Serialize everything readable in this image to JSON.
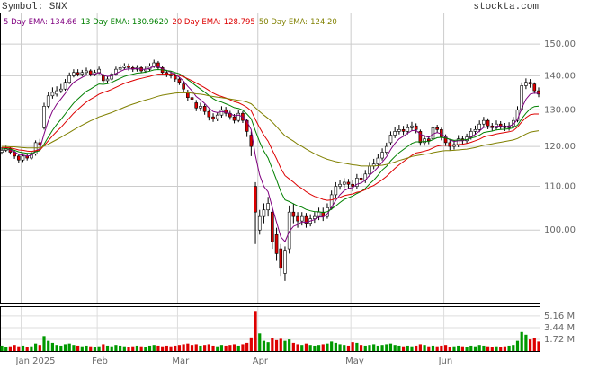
{
  "chart_data": {
    "type": "candlestick",
    "title": "Symbol: SNX",
    "source": "stockta.com",
    "log_scale": true,
    "grid": true,
    "up_color": "#ffffff",
    "down_color": "#dd0000",
    "ylim": [
      85.2,
      160.7
    ],
    "yticks": [
      {
        "value": 100,
        "label": "100.00"
      },
      {
        "value": 110,
        "label": "110.00"
      },
      {
        "value": 120,
        "label": "120.00"
      },
      {
        "value": 130,
        "label": "130.00"
      },
      {
        "value": 140,
        "label": "140.00"
      },
      {
        "value": 150,
        "label": "150.00"
      }
    ],
    "categories": [
      null,
      null,
      null,
      null,
      null,
      "Jan 2025",
      null,
      null,
      null,
      null,
      null,
      null,
      null,
      null,
      null,
      null,
      null,
      null,
      null,
      null,
      null,
      null,
      null,
      "Feb",
      null,
      null,
      null,
      null,
      null,
      null,
      null,
      null,
      null,
      null,
      null,
      null,
      null,
      null,
      null,
      null,
      null,
      null,
      "Mar",
      null,
      null,
      null,
      null,
      null,
      null,
      null,
      null,
      null,
      null,
      null,
      null,
      null,
      null,
      null,
      null,
      null,
      null,
      "Apr",
      null,
      null,
      null,
      null,
      null,
      null,
      null,
      null,
      null,
      null,
      null,
      null,
      null,
      null,
      null,
      null,
      null,
      null,
      null,
      null,
      null,
      "May",
      null,
      null,
      null,
      null,
      null,
      null,
      null,
      null,
      null,
      null,
      null,
      null,
      null,
      null,
      null,
      null,
      null,
      null,
      null,
      null,
      null,
      "Jun",
      null,
      null,
      null,
      null,
      null,
      null,
      null,
      null,
      null,
      null,
      null,
      null,
      null,
      null,
      null,
      null,
      null,
      null,
      null,
      null,
      null,
      null
    ],
    "open": [
      118.5,
      119,
      119.5,
      118.5,
      117.5,
      116.5,
      117.5,
      117,
      118,
      121,
      125,
      131,
      134,
      134.5,
      135.5,
      136,
      138,
      140,
      141,
      140.5,
      141,
      141.5,
      140.5,
      141,
      140,
      138.5,
      139,
      140.5,
      142,
      142.5,
      143,
      142.5,
      142,
      142.5,
      141.5,
      142,
      143,
      144,
      142.5,
      141,
      140.5,
      140,
      139,
      137.5,
      135,
      133.5,
      132,
      130.5,
      131,
      129.5,
      128,
      127.5,
      128.5,
      130,
      129,
      128,
      127,
      129,
      127,
      123,
      110,
      100,
      103,
      104.5,
      104,
      99,
      96,
      91,
      96,
      104,
      103,
      102,
      103,
      101.5,
      102.5,
      103,
      104,
      103,
      105,
      108,
      110,
      110.5,
      111,
      110.5,
      110,
      112,
      111.5,
      113,
      115,
      115.5,
      117,
      118.5,
      121,
      123,
      124,
      124.5,
      124,
      125,
      125.5,
      124,
      121,
      122,
      122,
      125,
      124.5,
      122.5,
      121,
      120,
      120.5,
      122,
      121.5,
      122.5,
      124,
      124.5,
      126,
      127,
      125.5,
      125,
      126,
      125.5,
      125,
      125.5,
      127,
      130,
      137,
      138,
      137.5,
      135.5
    ],
    "high": [
      119.8,
      120.2,
      120,
      119,
      118,
      118.2,
      118.3,
      118.6,
      121.6,
      122,
      132,
      135,
      136.5,
      136.8,
      137.5,
      139,
      141,
      142,
      142,
      141.8,
      142.5,
      142,
      141.8,
      142.8,
      140.6,
      139.8,
      141,
      142.8,
      143.5,
      143.9,
      143.8,
      143.2,
      143.3,
      143.1,
      142.8,
      143.9,
      145,
      144.6,
      143,
      141.8,
      141.3,
      140.8,
      139.6,
      138.3,
      135.8,
      134.6,
      132.8,
      132,
      131.6,
      130.2,
      129,
      129.3,
      131,
      130.8,
      129.7,
      128.8,
      129.8,
      129.6,
      127.5,
      124,
      111,
      104.5,
      106,
      107.5,
      105,
      100.5,
      97,
      96.5,
      105.5,
      106,
      104,
      104,
      103.8,
      103.5,
      104,
      105,
      105,
      106,
      109,
      111,
      111.6,
      112,
      111.8,
      111.5,
      113,
      113,
      114,
      116,
      116.8,
      118,
      119.5,
      121,
      124,
      125.2,
      125.8,
      125.5,
      126,
      126.6,
      126.2,
      124.5,
      123,
      122.8,
      126,
      125.8,
      125,
      123.2,
      121.6,
      121.6,
      123,
      122.8,
      123.4,
      124.8,
      125.6,
      127,
      128,
      127.6,
      126.3,
      127,
      126.8,
      126.3,
      126.5,
      128,
      131,
      138,
      139.2,
      139,
      138,
      136.5
    ],
    "low": [
      117.9,
      118.6,
      117.9,
      116.8,
      115.8,
      116,
      116.4,
      116.6,
      117.6,
      119.8,
      124.5,
      130.5,
      133.2,
      133.8,
      134.8,
      135.5,
      137.5,
      139.5,
      139.8,
      139.8,
      140.3,
      139.8,
      139.9,
      140.5,
      137.8,
      137.9,
      138.6,
      140,
      141.4,
      141.8,
      141.6,
      141.2,
      141.3,
      140.8,
      140.9,
      141.5,
      142.4,
      141.8,
      140.3,
      139.6,
      139.2,
      138.2,
      137.2,
      135.2,
      132.6,
      131.8,
      129.6,
      129.6,
      128.6,
      127,
      126.6,
      126.8,
      127.8,
      128.2,
      127.2,
      126.2,
      126.5,
      126.3,
      122.5,
      117.5,
      97,
      99,
      101.5,
      103,
      96,
      93.5,
      90.5,
      89.5,
      95,
      101.5,
      100.5,
      101,
      100.5,
      100.8,
      101.6,
      102.2,
      102,
      102.5,
      104.5,
      107.2,
      109.2,
      109.6,
      109.4,
      108.8,
      109.4,
      110.5,
      110.8,
      112.4,
      114.2,
      114.8,
      116.4,
      117.8,
      120.5,
      122.2,
      123.2,
      123,
      123.2,
      124.2,
      123.5,
      120.2,
      120.2,
      120.6,
      121.5,
      123.6,
      121.6,
      120.1,
      119,
      119.2,
      119.8,
      120.6,
      120.8,
      121.8,
      123.2,
      123.8,
      125.2,
      124.6,
      124.2,
      124.3,
      124.6,
      124.1,
      124.2,
      124.8,
      126.5,
      129.5,
      136,
      136.4,
      134.6,
      133.6
    ],
    "close": [
      119,
      119.5,
      118.5,
      117.5,
      116.5,
      117.5,
      117,
      118,
      121,
      120.5,
      131,
      134,
      135,
      135.5,
      136,
      138,
      140,
      141,
      140.5,
      141,
      141.5,
      140.5,
      141,
      142,
      138.5,
      139,
      140.5,
      142,
      142.5,
      143,
      142.5,
      142,
      142.5,
      141.5,
      142,
      143,
      144,
      142.5,
      141,
      140.5,
      140,
      139,
      138,
      136,
      133.5,
      133,
      130.5,
      131,
      129.5,
      128,
      127.5,
      128.5,
      130,
      129,
      128,
      127,
      129,
      127,
      124,
      120,
      104,
      103,
      104.5,
      106,
      97.5,
      95,
      92,
      95.5,
      104,
      103,
      102,
      103,
      101.5,
      102.5,
      103,
      104,
      103,
      105,
      108,
      110,
      110.5,
      111,
      110.5,
      110,
      112,
      111.5,
      113,
      115,
      115.5,
      117,
      118.5,
      120,
      123,
      124,
      124.5,
      124,
      125,
      125.5,
      124.5,
      121,
      122,
      121.5,
      125,
      124.5,
      122.5,
      121,
      120,
      120.5,
      122,
      121.5,
      122.5,
      124,
      124.5,
      126,
      127,
      125.5,
      125,
      126,
      125.5,
      125,
      125.5,
      127,
      130,
      137,
      138,
      137.5,
      135.5,
      134.5
    ],
    "series": [
      {
        "name": "5 Day EMA:",
        "value_label": "134.66",
        "color": "#800080",
        "values": [
          119.3,
          119.4,
          119.1,
          118.6,
          117.9,
          117.8,
          117.5,
          117.7,
          118.8,
          119.4,
          123.3,
          126.9,
          129.6,
          131.6,
          133.1,
          134.7,
          136.5,
          138.0,
          138.8,
          139.5,
          140.2,
          140.3,
          140.5,
          141.0,
          140.2,
          139.8,
          140.0,
          140.7,
          141.3,
          141.9,
          142.1,
          142.1,
          142.2,
          142.0,
          142.0,
          142.3,
          142.9,
          142.8,
          142.2,
          141.6,
          141.1,
          140.4,
          139.6,
          138.4,
          136.8,
          135.5,
          133.8,
          132.9,
          131.8,
          130.5,
          129.5,
          129.2,
          129.5,
          129.3,
          128.9,
          128.3,
          128.5,
          128.0,
          126.7,
          124.5,
          117.7,
          112.8,
          110.0,
          108.7,
          105.0,
          101.7,
          98.5,
          97.5,
          99.7,
          100.8,
          101.2,
          101.8,
          101.7,
          102.0,
          102.3,
          102.9,
          102.9,
          103.6,
          105.1,
          106.7,
          108.0,
          109.0,
          109.5,
          109.7,
          110.5,
          110.8,
          111.5,
          112.7,
          113.6,
          114.7,
          116.0,
          117.3,
          119.2,
          120.8,
          122.0,
          122.7,
          123.5,
          124.2,
          124.3,
          123.2,
          122.8,
          122.4,
          123.3,
          123.7,
          123.3,
          122.5,
          121.7,
          121.3,
          121.5,
          121.5,
          121.8,
          122.5,
          123.2,
          124.1,
          125.1,
          125.2,
          125.1,
          125.4,
          125.4,
          125.3,
          125.4,
          125.9,
          127.3,
          130.5,
          133.0,
          134.5,
          134.8,
          134.7
        ]
      },
      {
        "name": "13 Day EMA:",
        "value_label": "130.9620",
        "color": "#008000",
        "values": [
          119.4,
          119.4,
          119.3,
          119.0,
          118.6,
          118.4,
          118.2,
          118.2,
          118.6,
          118.9,
          120.6,
          122.5,
          124.3,
          125.9,
          127.3,
          128.8,
          130.4,
          131.9,
          133.1,
          134.2,
          135.3,
          136.0,
          136.8,
          137.5,
          137.4,
          137.6,
          138.0,
          138.6,
          139.2,
          139.8,
          140.2,
          140.5,
          140.8,
          140.9,
          141.1,
          141.4,
          141.8,
          141.9,
          141.8,
          141.6,
          141.4,
          141.0,
          140.6,
          139.9,
          138.8,
          137.9,
          136.9,
          136.0,
          135.1,
          134.1,
          133.2,
          132.5,
          132.2,
          131.7,
          131.2,
          130.6,
          130.4,
          129.9,
          128.8,
          127.5,
          124.2,
          121.2,
          118.8,
          117.0,
          114.2,
          111.5,
          108.7,
          106.8,
          106.4,
          105.9,
          105.4,
          105.1,
          104.6,
          104.3,
          104.1,
          104.1,
          103.9,
          104.1,
          104.7,
          105.4,
          106.2,
          106.9,
          107.3,
          107.7,
          108.3,
          108.8,
          109.5,
          110.6,
          111.5,
          112.7,
          114.0,
          114.9,
          116.3,
          117.4,
          118.4,
          119.2,
          120.0,
          120.8,
          121.2,
          121.2,
          121.3,
          121.3,
          121.8,
          122.3,
          122.4,
          122.2,
          121.9,
          121.6,
          121.7,
          121.7,
          121.8,
          122.2,
          122.5,
          123.0,
          123.7,
          123.9,
          124.1,
          124.4,
          124.5,
          124.6,
          124.7,
          125.0,
          125.7,
          127.5,
          129.0,
          130.3,
          130.9,
          131.0
        ]
      },
      {
        "name": "20 Day EMA:",
        "value_label": "128.795",
        "color": "#dd0000",
        "values": [
          119.7,
          119.7,
          119.6,
          119.4,
          119.1,
          119.0,
          118.8,
          118.7,
          118.9,
          119.1,
          120.2,
          121.5,
          122.8,
          124.0,
          125.1,
          126.4,
          127.7,
          129.0,
          130.1,
          131.2,
          132.2,
          133.0,
          133.7,
          134.5,
          135.0,
          135.4,
          135.9,
          136.5,
          137.1,
          137.7,
          138.1,
          138.5,
          138.9,
          139.2,
          139.5,
          139.8,
          140.2,
          140.5,
          140.5,
          140.5,
          140.5,
          140.3,
          140.1,
          139.7,
          139.1,
          138.5,
          137.8,
          137.1,
          136.4,
          135.6,
          134.8,
          134.2,
          133.8,
          133.4,
          132.9,
          132.3,
          132.0,
          131.4,
          130.7,
          129.7,
          127.3,
          125.0,
          123.0,
          121.4,
          119.0,
          116.8,
          114.4,
          112.6,
          111.8,
          111.0,
          110.1,
          109.5,
          108.7,
          108.1,
          107.6,
          107.3,
          106.9,
          106.7,
          106.8,
          107.1,
          107.4,
          107.8,
          108.0,
          108.2,
          108.6,
          108.8,
          109.2,
          109.8,
          110.2,
          110.9,
          111.6,
          112.4,
          113.4,
          114.4,
          115.3,
          116.1,
          116.9,
          117.7,
          118.3,
          118.5,
          118.8,
          119.1,
          119.6,
          120.1,
          120.3,
          120.3,
          120.3,
          120.3,
          120.5,
          120.6,
          120.8,
          121.1,
          121.5,
          121.9,
          122.5,
          122.8,
          123.0,
          123.3,
          123.5,
          123.7,
          123.9,
          124.2,
          125.2,
          126.6,
          127.8,
          128.6,
          128.8,
          128.8
        ]
      },
      {
        "name": "50 Day EMA:",
        "value_label": "124.20",
        "color": "#808000",
        "values": [
          120.0,
          120.0,
          119.9,
          119.9,
          119.8,
          119.7,
          119.6,
          119.6,
          119.6,
          119.6,
          120.1,
          120.6,
          121.2,
          121.8,
          122.4,
          123.1,
          123.7,
          124.4,
          125.1,
          125.7,
          126.3,
          126.9,
          127.4,
          128.0,
          128.4,
          128.8,
          129.2,
          129.7,
          130.2,
          130.7,
          131.2,
          131.6,
          132.0,
          132.4,
          132.8,
          133.1,
          133.5,
          133.9,
          134.2,
          134.4,
          134.6,
          134.8,
          134.9,
          134.9,
          134.9,
          134.8,
          134.6,
          134.5,
          134.3,
          134.0,
          133.8,
          133.6,
          133.5,
          133.3,
          133.1,
          132.9,
          132.7,
          132.5,
          132.2,
          131.7,
          130.6,
          129.5,
          128.5,
          127.6,
          126.5,
          125.3,
          124.0,
          122.8,
          122.1,
          121.4,
          120.6,
          120.0,
          119.3,
          118.7,
          118.1,
          117.6,
          117.1,
          116.7,
          116.4,
          116.1,
          115.9,
          115.7,
          115.5,
          115.3,
          115.2,
          115.0,
          115.0,
          115.0,
          115.0,
          115.1,
          115.2,
          115.4,
          115.7,
          116.0,
          116.4,
          116.7,
          117.0,
          117.4,
          117.6,
          117.8,
          118.0,
          118.1,
          118.4,
          118.6,
          118.8,
          118.9,
          118.9,
          119.0,
          119.1,
          119.2,
          119.3,
          119.5,
          119.7,
          120.0,
          120.3,
          120.5,
          120.7,
          120.9,
          121.1,
          121.3,
          121.5,
          121.7,
          122.1,
          122.7,
          123.3,
          123.8,
          124.0,
          124.2
        ]
      }
    ],
    "volume": {
      "up_color": "#009900",
      "down_color": "#dd0000",
      "ylim": [
        0,
        6.6
      ],
      "yticks": [
        {
          "value": 1.72,
          "label": "1.72 M"
        },
        {
          "value": 3.44,
          "label": "3.44 M"
        },
        {
          "value": 5.16,
          "label": "5.16 M"
        }
      ],
      "values": [
        0.8,
        0.6,
        0.7,
        0.9,
        0.7,
        0.8,
        0.6,
        0.7,
        1.1,
        0.9,
        2.2,
        1.5,
        1.2,
        0.9,
        0.8,
        1.0,
        1.1,
        0.9,
        0.8,
        0.7,
        0.8,
        0.7,
        0.6,
        0.7,
        1.0,
        0.8,
        0.7,
        0.9,
        0.8,
        0.7,
        0.6,
        0.7,
        0.8,
        0.7,
        0.6,
        0.8,
        0.9,
        0.8,
        0.7,
        0.8,
        0.7,
        0.8,
        0.9,
        1.0,
        1.1,
        0.9,
        1.0,
        0.8,
        0.9,
        1.0,
        0.8,
        0.7,
        0.9,
        0.8,
        0.9,
        1.0,
        0.8,
        1.0,
        1.2,
        2.0,
        5.9,
        2.6,
        1.5,
        1.3,
        1.9,
        1.6,
        1.8,
        1.5,
        1.7,
        1.2,
        1.0,
        0.9,
        1.1,
        0.9,
        0.8,
        0.9,
        1.0,
        1.1,
        1.4,
        1.2,
        1.0,
        0.9,
        0.8,
        1.3,
        1.2,
        0.9,
        0.8,
        0.9,
        1.0,
        0.8,
        0.9,
        1.0,
        1.1,
        0.9,
        0.8,
        0.7,
        0.8,
        0.7,
        0.8,
        1.0,
        0.9,
        0.7,
        0.8,
        0.7,
        0.8,
        0.9,
        0.6,
        0.7,
        0.8,
        0.7,
        0.6,
        0.8,
        0.7,
        0.9,
        0.8,
        0.7,
        0.6,
        0.7,
        0.6,
        0.7,
        0.8,
        0.9,
        1.5,
        2.8,
        2.4,
        1.7,
        1.9,
        1.4
      ]
    }
  }
}
